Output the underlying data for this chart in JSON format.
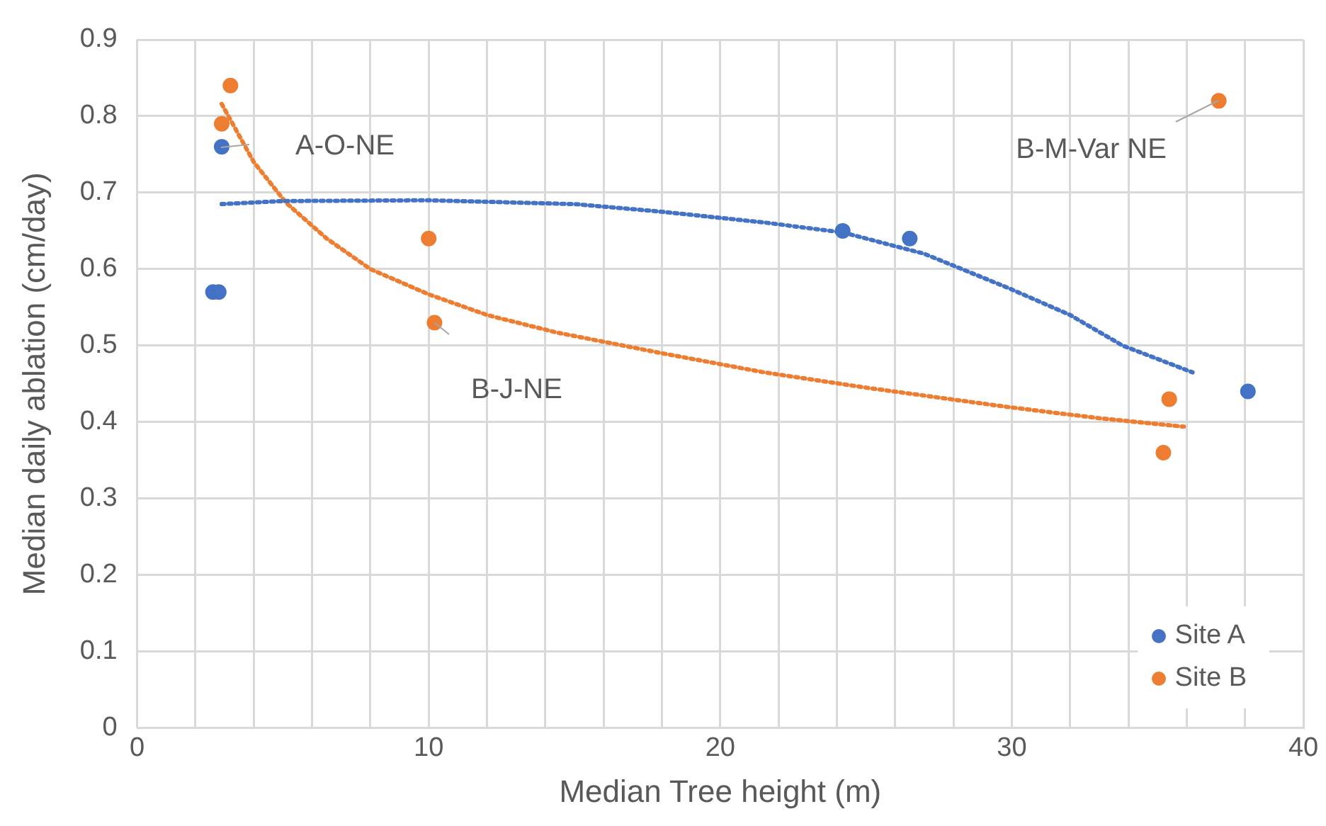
{
  "chart_data": {
    "type": "scatter",
    "xlabel": "Median Tree height (m)",
    "ylabel": "Median daily ablation (cm/day)",
    "xlim": [
      0,
      40
    ],
    "ylim": [
      0,
      0.9
    ],
    "xticks": [
      0,
      {
        "value": 2,
        "label": null
      },
      {
        "value": 4,
        "label": null
      },
      {
        "value": 6,
        "label": null
      },
      {
        "value": 8,
        "label": null
      },
      10,
      {
        "value": 12,
        "label": null
      },
      {
        "value": 14,
        "label": null
      },
      {
        "value": 16,
        "label": null
      },
      {
        "value": 18,
        "label": null
      },
      20,
      {
        "value": 22,
        "label": null
      },
      {
        "value": 24,
        "label": null
      },
      {
        "value": 26,
        "label": null
      },
      {
        "value": 28,
        "label": null
      },
      30,
      {
        "value": 32,
        "label": null
      },
      {
        "value": 34,
        "label": null
      },
      {
        "value": 36,
        "label": null
      },
      {
        "value": 38,
        "label": null
      },
      40
    ],
    "yticks": [
      0,
      0.1,
      0.2,
      0.3,
      0.4,
      0.5,
      0.6,
      0.7,
      0.8,
      0.9
    ],
    "grid": true,
    "legend": "bottom right",
    "marker": "circle",
    "series": [
      {
        "name": "Site A",
        "type": "scatter",
        "color": "#4472c4",
        "x": [
          2.6,
          2.8,
          2.9,
          24.2,
          26.5,
          38.1
        ],
        "values": [
          0.57,
          0.57,
          0.76,
          0.65,
          0.64,
          0.44
        ]
      },
      {
        "name": "Site B",
        "type": "scatter",
        "color": "#ed7d31",
        "x": [
          2.9,
          3.2,
          10,
          10.2,
          35.2,
          35.4,
          37.1
        ],
        "values": [
          0.79,
          0.84,
          0.64,
          0.53,
          0.36,
          0.43,
          0.82
        ]
      },
      {
        "type": "line",
        "color": "#4472c4",
        "marker": "none",
        "line_style": "dotted",
        "x": [
          2.9,
          5,
          10,
          15,
          18,
          21.5,
          24.2,
          27,
          29.9,
          32,
          33.8,
          36.2
        ],
        "values": [
          0.685,
          0.689,
          0.69,
          0.685,
          0.675,
          0.661,
          0.648,
          0.62,
          0.575,
          0.54,
          0.5,
          0.465
        ]
      },
      {
        "type": "line",
        "color": "#ed7d31",
        "marker": "none",
        "line_style": "dotted",
        "x": [
          2.9,
          4,
          5.1,
          6.5,
          8,
          10,
          12,
          14.4,
          18,
          21.5,
          25,
          29.8,
          33,
          35.9
        ],
        "values": [
          0.816,
          0.74,
          0.687,
          0.64,
          0.6,
          0.567,
          0.54,
          0.517,
          0.49,
          0.465,
          0.445,
          0.42,
          0.405,
          0.394
        ]
      }
    ],
    "annotations": [
      {
        "text": "A-O-NE",
        "x": 2.9,
        "y": 0.76
      },
      {
        "text": "B-J-NE",
        "x": 10.2,
        "y": 0.53
      },
      {
        "text": "B-M-Var NE",
        "x": 37.1,
        "y": 0.82
      }
    ]
  }
}
